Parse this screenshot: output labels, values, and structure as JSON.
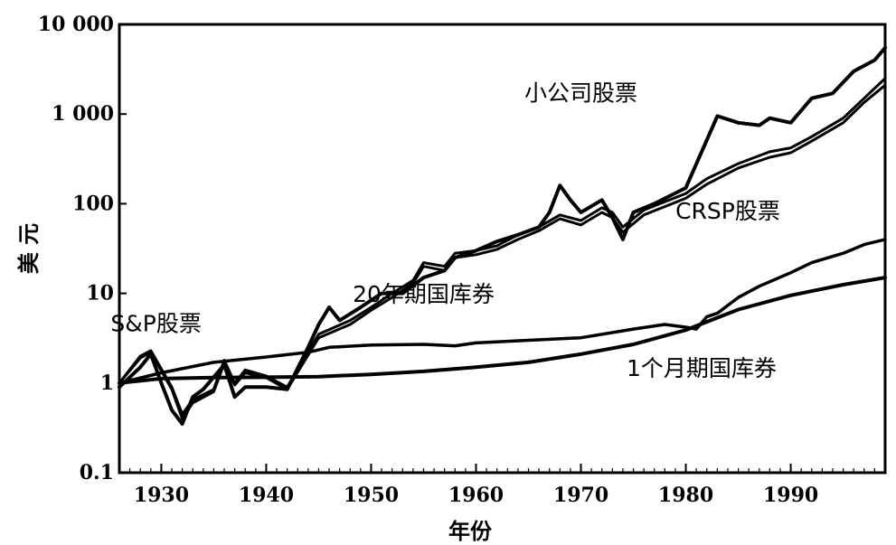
{
  "chart_data": {
    "type": "line",
    "title": "",
    "xlabel": "年份",
    "ylabel": "美 元",
    "xlim": [
      1926,
      1999
    ],
    "ylim": [
      0.1,
      10000
    ],
    "y_scale": "log",
    "x_ticks": [
      1930,
      1940,
      1950,
      1960,
      1970,
      1980,
      1990
    ],
    "x_tick_labels": [
      "1930",
      "1940",
      "1950",
      "1960",
      "1970",
      "1980",
      "1990"
    ],
    "y_ticks": [
      0.1,
      1,
      10,
      100,
      1000,
      10000
    ],
    "y_tick_labels": [
      "0.1",
      "1",
      "10",
      "100",
      "1 000",
      "10 000"
    ],
    "grid": false,
    "legend": "none",
    "line_color": "#000000",
    "series": [
      {
        "name": "小公司股票",
        "x": [
          1926,
          1928,
          1929,
          1930,
          1931,
          1932,
          1933,
          1934,
          1936,
          1937,
          1938,
          1940,
          1942,
          1944,
          1945,
          1946,
          1947,
          1949,
          1951,
          1953,
          1955,
          1957,
          1958,
          1960,
          1962,
          1964,
          1966,
          1967,
          1968,
          1969,
          1970,
          1972,
          1973,
          1974,
          1975,
          1977,
          1980,
          1983,
          1985,
          1987,
          1988,
          1990,
          1992,
          1994,
          1996,
          1998,
          1999
        ],
        "y": [
          0.9,
          1.5,
          2.1,
          1.0,
          0.5,
          0.35,
          0.7,
          0.85,
          1.6,
          0.7,
          0.9,
          0.9,
          0.85,
          2.5,
          4.5,
          7.0,
          5.0,
          7.0,
          10,
          10,
          15,
          18,
          25,
          30,
          38,
          45,
          55,
          80,
          160,
          110,
          80,
          110,
          70,
          40,
          80,
          100,
          150,
          950,
          800,
          750,
          900,
          800,
          1500,
          1700,
          3000,
          4000,
          5500
        ]
      },
      {
        "name": "CRSP股票",
        "x": [
          1926,
          1928,
          1929,
          1931,
          1932,
          1933,
          1935,
          1936,
          1937,
          1938,
          1940,
          1942,
          1945,
          1948,
          1950,
          1952,
          1954,
          1955,
          1957,
          1958,
          1960,
          1962,
          1964,
          1966,
          1968,
          1970,
          1972,
          1973,
          1974,
          1976,
          1980,
          1982,
          1985,
          1988,
          1990,
          1992,
          1995,
          1997,
          1999
        ],
        "y": [
          1.0,
          2.0,
          2.3,
          0.9,
          0.45,
          0.65,
          0.85,
          1.8,
          1.0,
          1.4,
          1.2,
          0.9,
          3.5,
          5.0,
          7.0,
          10,
          14,
          22,
          20,
          28,
          30,
          34,
          45,
          55,
          75,
          65,
          90,
          80,
          55,
          85,
          130,
          190,
          280,
          380,
          420,
          560,
          900,
          1500,
          2500
        ]
      },
      {
        "name": "S&P股票",
        "x": [
          1926,
          1928,
          1929,
          1931,
          1932,
          1933,
          1935,
          1936,
          1937,
          1938,
          1940,
          1942,
          1945,
          1948,
          1950,
          1952,
          1954,
          1955,
          1957,
          1958,
          1960,
          1962,
          1964,
          1966,
          1968,
          1970,
          1972,
          1973,
          1974,
          1976,
          1980,
          1982,
          1985,
          1988,
          1990,
          1992,
          1995,
          1997,
          1999
        ],
        "y": [
          1.0,
          1.9,
          2.2,
          0.85,
          0.4,
          0.6,
          0.8,
          1.65,
          0.95,
          1.3,
          1.15,
          0.85,
          3.2,
          4.5,
          6.5,
          9,
          13,
          20,
          18,
          25,
          27,
          31,
          40,
          50,
          68,
          58,
          80,
          70,
          48,
          75,
          115,
          165,
          250,
          330,
          370,
          500,
          800,
          1350,
          2100
        ]
      },
      {
        "name": "20年期国库券",
        "x": [
          1926,
          1930,
          1935,
          1940,
          1944,
          1946,
          1950,
          1955,
          1958,
          1960,
          1965,
          1970,
          1975,
          1978,
          1980,
          1981,
          1982,
          1983,
          1985,
          1987,
          1990,
          1992,
          1995,
          1997,
          1999
        ],
        "y": [
          1.0,
          1.3,
          1.7,
          1.95,
          2.2,
          2.5,
          2.65,
          2.7,
          2.6,
          2.8,
          3.0,
          3.2,
          4.0,
          4.5,
          4.2,
          4.0,
          5.5,
          6.0,
          9.0,
          12,
          17,
          22,
          28,
          35,
          40
        ]
      },
      {
        "name": "1个月期国库券",
        "x": [
          1926,
          1930,
          1935,
          1940,
          1945,
          1950,
          1955,
          1960,
          1965,
          1970,
          1975,
          1980,
          1985,
          1990,
          1995,
          1999
        ],
        "y": [
          1.0,
          1.12,
          1.15,
          1.16,
          1.18,
          1.25,
          1.35,
          1.5,
          1.7,
          2.1,
          2.7,
          3.9,
          6.6,
          9.5,
          12.5,
          15
        ]
      }
    ],
    "annotations": [
      {
        "text": "小公司股票",
        "x": 1970,
        "y": 1400
      },
      {
        "text": "CRSP股票",
        "x": 1984,
        "y": 68
      },
      {
        "text": "20年期国库券",
        "x": 1955,
        "y": 8
      },
      {
        "text": "S&P股票",
        "x": 1929.5,
        "y": 3.8
      },
      {
        "text": "1个月期国库券",
        "x": 1981.5,
        "y": 1.2
      }
    ]
  }
}
